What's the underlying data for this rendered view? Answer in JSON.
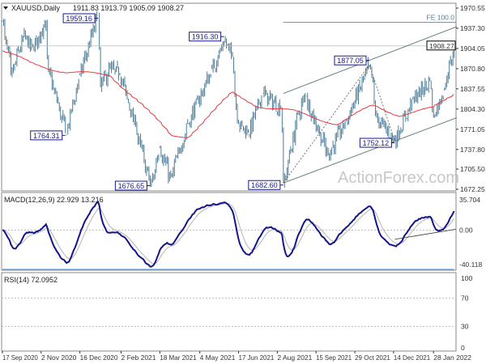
{
  "chart_data": {
    "type": "ohlc-with-indicators",
    "symbol_header": "XAUUSD,Daily",
    "ohlc_header": "1911.83 1913.79 1905.09 1908.27",
    "last_price": "1908.27",
    "watermark": "ActionForex.com",
    "price_axis": {
      "ylim": [
        1672.25,
        1970.55
      ],
      "ticks": [
        "1970.55",
        "1937.30",
        "1904.05",
        "1870.80",
        "1837.55",
        "1804.30",
        "1771.05",
        "1737.80",
        "1705.50",
        "1672.25"
      ]
    },
    "x_ticks": [
      "17 Sep 2020",
      "2 Nov 2020",
      "16 Dec 2020",
      "2 Feb 2021",
      "18 Mar 2021",
      "4 May 2021",
      "17 Jun 2021",
      "2 Aug 2021",
      "15 Sep 2021",
      "29 Oct 2021",
      "14 Dec 2021",
      "28 Jan 2022"
    ],
    "x_tick_dates": [
      "2020-09-17",
      "2020-11-02",
      "2020-12-16",
      "2021-02-02",
      "2021-03-18",
      "2021-05-04",
      "2021-06-17",
      "2021-08-02",
      "2021-09-15",
      "2021-10-29",
      "2021-12-14",
      "2022-01-28"
    ],
    "price_path": [
      [
        "2020-09-17",
        1950
      ],
      [
        "2020-09-28",
        1860
      ],
      [
        "2020-10-12",
        1925
      ],
      [
        "2020-10-23",
        1900
      ],
      [
        "2020-11-06",
        1950
      ],
      [
        "2020-11-10",
        1865
      ],
      [
        "2020-11-30",
        1764.31
      ],
      [
        "2020-12-16",
        1860
      ],
      [
        "2021-01-06",
        1959.16
      ],
      [
        "2021-01-08",
        1840
      ],
      [
        "2021-01-20",
        1870
      ],
      [
        "2021-02-01",
        1860
      ],
      [
        "2021-02-18",
        1775
      ],
      [
        "2021-03-08",
        1676.65
      ],
      [
        "2021-03-18",
        1740
      ],
      [
        "2021-03-31",
        1690
      ],
      [
        "2021-04-20",
        1780
      ],
      [
        "2021-05-18",
        1870
      ],
      [
        "2021-06-01",
        1916.3
      ],
      [
        "2021-06-10",
        1890
      ],
      [
        "2021-06-17",
        1780
      ],
      [
        "2021-06-29",
        1765
      ],
      [
        "2021-07-15",
        1830
      ],
      [
        "2021-08-05",
        1805
      ],
      [
        "2021-08-09",
        1682.6
      ],
      [
        "2021-08-25",
        1795
      ],
      [
        "2021-09-03",
        1825
      ],
      [
        "2021-09-29",
        1728
      ],
      [
        "2021-10-20",
        1785
      ],
      [
        "2021-11-16",
        1877.05
      ],
      [
        "2021-11-24",
        1790
      ],
      [
        "2021-12-15",
        1752.12
      ],
      [
        "2022-01-05",
        1820
      ],
      [
        "2022-01-25",
        1850
      ],
      [
        "2022-01-28",
        1790
      ],
      [
        "2022-02-10",
        1835
      ],
      [
        "2022-02-22",
        1908.27
      ]
    ],
    "ma_path": [
      [
        "2020-09-17",
        1900
      ],
      [
        "2020-10-20",
        1880
      ],
      [
        "2020-12-01",
        1865
      ],
      [
        "2021-01-20",
        1860
      ],
      [
        "2021-02-20",
        1820
      ],
      [
        "2021-04-01",
        1760
      ],
      [
        "2021-04-20",
        1760
      ],
      [
        "2021-06-10",
        1830
      ],
      [
        "2021-07-10",
        1810
      ],
      [
        "2021-08-20",
        1800
      ],
      [
        "2021-10-10",
        1780
      ],
      [
        "2021-11-20",
        1810
      ],
      [
        "2021-12-20",
        1795
      ],
      [
        "2022-01-28",
        1805
      ],
      [
        "2022-02-22",
        1830
      ]
    ],
    "annotations": {
      "price_labels": [
        {
          "text": "1959.16",
          "date": "2021-01-06",
          "price": 1959.16,
          "side": "left",
          "pos": "above"
        },
        {
          "text": "1764.31",
          "date": "2020-11-30",
          "price": 1764.31,
          "side": "left",
          "pos": "below"
        },
        {
          "text": "1676.65",
          "date": "2021-03-08",
          "price": 1676.65,
          "side": "left",
          "pos": "below"
        },
        {
          "text": "1916.30",
          "date": "2021-06-01",
          "price": 1916.3,
          "side": "left",
          "pos": "above"
        },
        {
          "text": "1682.60",
          "date": "2021-08-09",
          "price": 1682.6,
          "side": "left",
          "pos": "below"
        },
        {
          "text": "1877.05",
          "date": "2021-11-16",
          "price": 1877.05,
          "side": "left",
          "pos": "above"
        },
        {
          "text": "1752.12",
          "date": "2021-12-15",
          "price": 1752.12,
          "side": "left",
          "pos": "below"
        }
      ],
      "fe_label": "FE 100.0",
      "fe_level": 1947,
      "channel": {
        "lower": [
          [
            "2021-08-09",
            1682.6
          ],
          [
            "2022-02-25",
            1790
          ]
        ],
        "upper": [
          [
            "2021-08-09",
            1830
          ],
          [
            "2022-02-25",
            1940
          ]
        ]
      }
    },
    "colors": {
      "bars": "#4d7d98",
      "ma": "#e8393f",
      "macd": "#14148c",
      "signal": "#b4b4b4",
      "rsi": "#4a9cf0",
      "label": "#1a1a8a"
    },
    "macd": {
      "header": "MACD(12,26,9) 22.929 13.216",
      "ylim": [
        -40.118,
        35.704
      ],
      "ticks": [
        "35.704",
        "0.00",
        "-40.118"
      ]
    },
    "rsi": {
      "header": "RSI(14) 72.0952",
      "ylim": [
        0,
        100
      ],
      "ticks": [
        "100",
        "70",
        "30",
        "0"
      ]
    }
  }
}
